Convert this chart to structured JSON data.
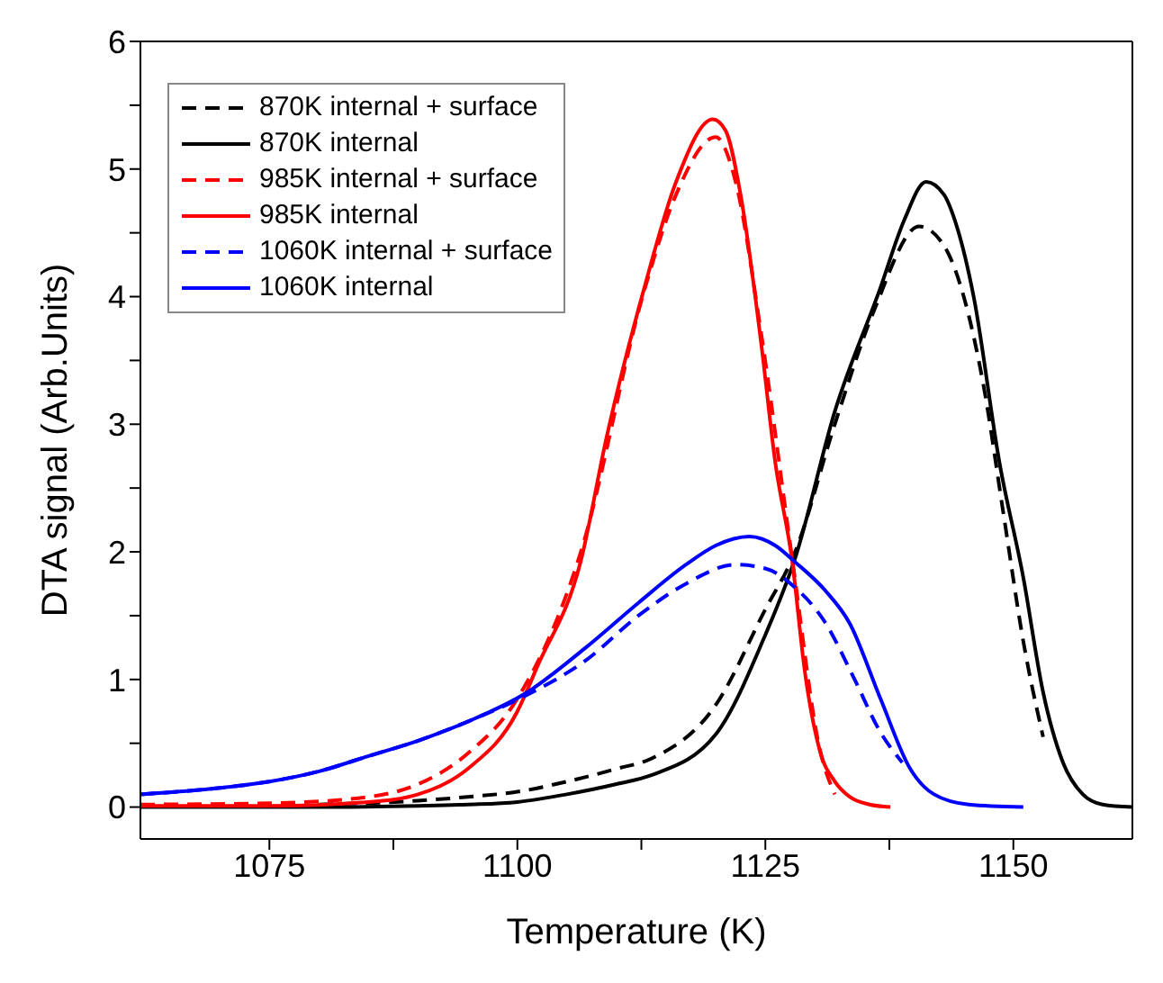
{
  "chart_data": {
    "type": "line",
    "xlabel": "Temperature (K)",
    "ylabel": "DTA signal (Arb.Units)",
    "xlim": [
      1062,
      1162
    ],
    "xticks": [
      1075,
      {
        "value": 1087.5,
        "label": null
      },
      1100,
      {
        "value": 1112.5,
        "label": null
      },
      1125,
      {
        "value": 1137.5,
        "label": null
      },
      1150
    ],
    "ylim": [
      -0.25,
      6
    ],
    "yticks": [
      0,
      {
        "value": 0.5,
        "label": null
      },
      1,
      {
        "value": 1.5,
        "label": null
      },
      2,
      {
        "value": 2.5,
        "label": null
      },
      3,
      {
        "value": 3.5,
        "label": null
      },
      4,
      {
        "value": 4.5,
        "label": null
      },
      5,
      {
        "value": 5.5,
        "label": null
      },
      6
    ],
    "grid": false,
    "legend": "top left",
    "marker": "none",
    "series": [
      {
        "name": "870K internal + surface",
        "color": "#000000",
        "line_style": "dashed",
        "x": [
          1080,
          1090,
          1095,
          1100,
          1105,
          1110,
          1113.5,
          1120,
          1125,
          1128,
          1132,
          1136,
          1140.5,
          1143,
          1145,
          1147,
          1149,
          1151,
          1153
        ],
        "values": [
          0.02,
          0.05,
          0.08,
          0.12,
          0.2,
          0.3,
          0.38,
          0.8,
          1.55,
          2.0,
          3.0,
          3.9,
          4.55,
          4.4,
          4.0,
          3.3,
          2.3,
          1.3,
          0.55
        ]
      },
      {
        "name": "870K internal",
        "color": "#000000",
        "line_style": "solid",
        "x": [
          1062,
          1080,
          1090,
          1095,
          1100,
          1105,
          1110,
          1113.5,
          1120,
          1125,
          1128,
          1132,
          1136.6,
          1139,
          1141.2,
          1143,
          1144.3,
          1146,
          1148.6,
          1151,
          1153,
          1155,
          1157,
          1159,
          1162
        ],
        "values": [
          0,
          0,
          0.01,
          0.02,
          0.04,
          0.1,
          0.18,
          0.25,
          0.57,
          1.35,
          1.95,
          3.1,
          4.07,
          4.6,
          4.9,
          4.8,
          4.55,
          4.0,
          2.7,
          1.8,
          0.9,
          0.35,
          0.1,
          0.02,
          0
        ]
      },
      {
        "name": "985K internal + surface",
        "color": "#ff0000",
        "line_style": "dashed",
        "x": [
          1062,
          1075,
          1085,
          1090,
          1095,
          1100,
          1106.4,
          1112.8,
          1116,
          1120,
          1122,
          1124.6,
          1127.7,
          1130.5,
          1132
        ],
        "values": [
          0.02,
          0.03,
          0.08,
          0.18,
          0.42,
          0.85,
          2.0,
          4.05,
          4.8,
          5.25,
          4.9,
          3.7,
          1.95,
          0.45,
          0.1
        ]
      },
      {
        "name": "985K internal",
        "color": "#ff0000",
        "line_style": "solid",
        "x": [
          1062,
          1075,
          1085,
          1090,
          1095,
          1100,
          1102,
          1106.4,
          1109,
          1112.8,
          1116,
          1119.7,
          1121,
          1122.5,
          1124.6,
          1126,
          1127.7,
          1129,
          1130.5,
          1132,
          1133.5,
          1135.5,
          1137.6
        ],
        "values": [
          0.01,
          0.01,
          0.04,
          0.1,
          0.3,
          0.75,
          1.1,
          1.93,
          2.9,
          4.07,
          4.9,
          5.39,
          5.3,
          4.8,
          3.62,
          2.7,
          1.93,
          1.05,
          0.44,
          0.2,
          0.08,
          0.02,
          0
        ]
      },
      {
        "name": "1060K internal + surface",
        "color": "#0000ff",
        "line_style": "dashed",
        "x": [
          1062,
          1070,
          1075,
          1080,
          1085,
          1090,
          1095,
          1101,
          1106.9,
          1112.2,
          1117,
          1122,
          1125,
          1128,
          1131,
          1134,
          1136.5,
          1138.8
        ],
        "values": [
          0.1,
          0.15,
          0.2,
          0.28,
          0.4,
          0.52,
          0.67,
          0.88,
          1.15,
          1.5,
          1.75,
          1.9,
          1.87,
          1.72,
          1.45,
          1.0,
          0.6,
          0.35
        ]
      },
      {
        "name": "1060K internal",
        "color": "#0000ff",
        "line_style": "solid",
        "x": [
          1062,
          1070,
          1075,
          1080,
          1085,
          1090,
          1095,
          1101,
          1106.9,
          1112.2,
          1117,
          1120,
          1123.4,
          1126,
          1128,
          1131,
          1133.5,
          1136.6,
          1139.6,
          1142,
          1145.5,
          1151
        ],
        "values": [
          0.1,
          0.15,
          0.2,
          0.28,
          0.4,
          0.52,
          0.67,
          0.9,
          1.25,
          1.6,
          1.9,
          2.05,
          2.12,
          2.05,
          1.92,
          1.7,
          1.44,
          0.85,
          0.3,
          0.1,
          0.02,
          0
        ]
      }
    ]
  }
}
